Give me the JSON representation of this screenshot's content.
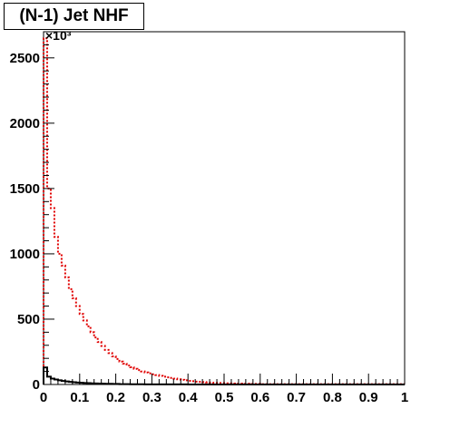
{
  "chart_data": {
    "type": "histogram",
    "title": "(N-1) Jet NHF",
    "xlabel": "",
    "ylabel": "",
    "y_multiplier": "×10³",
    "xlim": [
      0,
      1
    ],
    "ylim": [
      0,
      2700
    ],
    "grid": false,
    "legend": "none",
    "x_ticks": [
      "0",
      "0.1",
      "0.2",
      "0.3",
      "0.4",
      "0.5",
      "0.6",
      "0.7",
      "0.8",
      "0.9",
      "1"
    ],
    "y_ticks": [
      "0",
      "500",
      "1000",
      "1500",
      "2000",
      "2500"
    ],
    "bin_width": 0.01,
    "series": [
      {
        "color": "#e00000",
        "style": "dotted",
        "values": [
          2650,
          1500,
          1350,
          1130,
          1000,
          910,
          820,
          730,
          660,
          600,
          540,
          490,
          445,
          400,
          360,
          325,
          295,
          265,
          240,
          215,
          195,
          175,
          160,
          145,
          132,
          120,
          110,
          100,
          92,
          85,
          78,
          72,
          66,
          60,
          55,
          50,
          45,
          40,
          36,
          32,
          28,
          25,
          22,
          20,
          18,
          16,
          14,
          12,
          11,
          10,
          9,
          8,
          7,
          6,
          6,
          5,
          5,
          4,
          4,
          4,
          3,
          3,
          3,
          3,
          3,
          3,
          3,
          3,
          3,
          3,
          3,
          3,
          3,
          3,
          3,
          3,
          3,
          3,
          3,
          3,
          3,
          3,
          3,
          3,
          3,
          3,
          3,
          3,
          3,
          3,
          3,
          3,
          3,
          3,
          3,
          3,
          3,
          3,
          3,
          3
        ]
      },
      {
        "color": "#000000",
        "style": "solid",
        "values": [
          130,
          60,
          45,
          38,
          32,
          27,
          23,
          20,
          17,
          15,
          13,
          11,
          10,
          9,
          8,
          7,
          6,
          5,
          5,
          4,
          4,
          3,
          3,
          3,
          2,
          2,
          2,
          2,
          1,
          1,
          1,
          1,
          1,
          1,
          1,
          1,
          1,
          1,
          1,
          1,
          0,
          0,
          0,
          0,
          0,
          0,
          0,
          0,
          0,
          0,
          0,
          0,
          0,
          0,
          0,
          0,
          0,
          0,
          0,
          0,
          0,
          0,
          0,
          0,
          0,
          0,
          0,
          0,
          0,
          0,
          0,
          0,
          0,
          0,
          0,
          0,
          0,
          0,
          0,
          0,
          0,
          0,
          0,
          0,
          0,
          0,
          0,
          0,
          0,
          0,
          0,
          0,
          0,
          0,
          0,
          0,
          0,
          0,
          0,
          0
        ]
      }
    ]
  }
}
